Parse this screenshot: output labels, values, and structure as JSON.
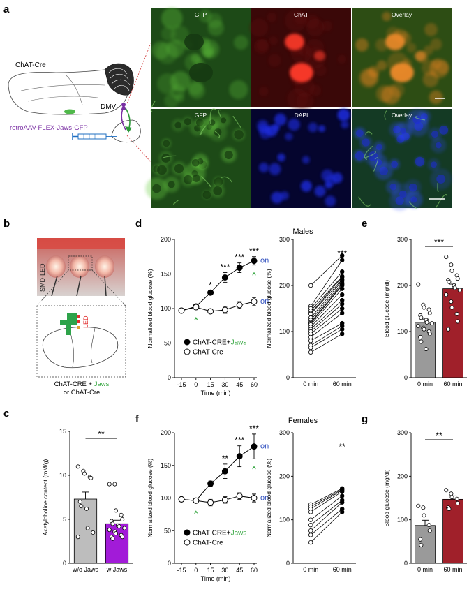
{
  "panels": {
    "a": "a",
    "b": "b",
    "c": "c",
    "d": "d",
    "e": "e",
    "f": "f",
    "g": "g"
  },
  "schematic_a": {
    "mouse_label": "ChAT-Cre",
    "nucleus_label": "DMV",
    "virus_label": "retroAAV-FLEX-Jaws-GFP"
  },
  "micrographs": [
    {
      "label": "GFP",
      "bg": "#1d4a17",
      "accent": "#5fbf3a"
    },
    {
      "label": "ChAT",
      "bg": "#3a0808",
      "accent": "#ff3020"
    },
    {
      "label": "Overlay",
      "bg": "#2d4d14",
      "accent": "#ff8a20"
    },
    {
      "label": "GFP",
      "bg": "#1d4a17",
      "accent": "#6ccf45"
    },
    {
      "label": "DAPI",
      "bg": "#05052e",
      "accent": "#2a3cff"
    },
    {
      "label": "Overlay",
      "bg": "#143a24",
      "accent": "#3050ff"
    }
  ],
  "panel_b": {
    "led_label": "SMD-LED",
    "led_text": "LED",
    "caption_line1_a": "ChAT-CRE + ",
    "caption_line1_b": "Jaws",
    "caption_line2": "or ChAT-Cre"
  },
  "sections": {
    "males": "Males",
    "females": "Females"
  },
  "colors": {
    "jaws_green": "#3aa845",
    "on_blue": "#2f4fbf",
    "male_red": "#a0202a",
    "gray_bar": "#bdbdbd",
    "purple_bar": "#a21bd8"
  },
  "chart_data": [
    {
      "panel": "c",
      "type": "bar",
      "categories": [
        "w/o Jaws",
        "w Jaws"
      ],
      "values": [
        7.3,
        4.5
      ],
      "errors": [
        0.8,
        0.4
      ],
      "points": [
        [
          11,
          10.5,
          10.2,
          9.8,
          9.7,
          7,
          6.5,
          6.2,
          4,
          3.5,
          3
        ],
        [
          9,
          9,
          6,
          5.5,
          5,
          4.8,
          4.5,
          4.3,
          4.2,
          4,
          3.8,
          3.6,
          3.4,
          3.2,
          3,
          3,
          2.8
        ]
      ],
      "ylabel": "Acetylcholine content (mM/g)",
      "yticks": [
        0,
        5,
        10,
        15
      ],
      "ylim": [
        0,
        15
      ],
      "significance": "**"
    },
    {
      "panel": "d",
      "type": "line",
      "x": [
        -15,
        0,
        15,
        30,
        45,
        60
      ],
      "xticks": [
        "-15",
        "0",
        "15",
        "30",
        "45",
        "60"
      ],
      "series": [
        {
          "name": "ChAT-CRE+Jaws",
          "values": [
            97,
            103,
            123,
            145,
            159,
            169
          ],
          "errors": [
            2,
            2,
            3,
            7,
            7,
            6
          ],
          "filled": true
        },
        {
          "name": "ChAT-Cre",
          "values": [
            97,
            102,
            96,
            98,
            105,
            110
          ],
          "errors": [
            2,
            2,
            3,
            5,
            5,
            6
          ],
          "filled": false
        }
      ],
      "significance": [
        "",
        "",
        "*",
        "***",
        "***",
        "***"
      ],
      "ylim": [
        0,
        200
      ],
      "yticks": [
        0,
        50,
        100,
        150,
        200
      ],
      "ylabel": "Normalized blood glucose (%)",
      "xlabel": "Time (min)",
      "on_label": "on",
      "legend": [
        {
          "name": "ChAT-CRE+",
          "name_b": "Jaws"
        },
        {
          "name": "ChAT-Cre"
        }
      ]
    },
    {
      "panel": "d2",
      "type": "line",
      "categories": [
        "0 min",
        "60 min"
      ],
      "pairs": [
        [
          200,
          265
        ],
        [
          155,
          255
        ],
        [
          150,
          230
        ],
        [
          145,
          220
        ],
        [
          140,
          218
        ],
        [
          138,
          213
        ],
        [
          130,
          210
        ],
        [
          125,
          205
        ],
        [
          120,
          202
        ],
        [
          118,
          200
        ],
        [
          115,
          193
        ],
        [
          110,
          180
        ],
        [
          105,
          168
        ],
        [
          100,
          160
        ],
        [
          95,
          150
        ],
        [
          88,
          140
        ],
        [
          80,
          118
        ],
        [
          70,
          112
        ],
        [
          65,
          105
        ],
        [
          55,
          95
        ]
      ],
      "ylim": [
        0,
        300
      ],
      "yticks": [
        0,
        100,
        200,
        300
      ],
      "ylabel": "Normalized blood glucose (%)",
      "significance": "***"
    },
    {
      "panel": "e",
      "type": "bar",
      "categories": [
        "0 min",
        "60 min"
      ],
      "values": [
        120,
        193
      ],
      "errors": [
        7,
        10
      ],
      "points": [
        [
          202,
          158,
          152,
          148,
          140,
          135,
          130,
          125,
          120,
          118,
          112,
          108,
          105,
          100,
          95,
          88,
          78,
          62
        ],
        [
          262,
          245,
          232,
          222,
          215,
          212,
          208,
          200,
          195,
          190,
          180,
          165,
          152,
          138,
          122,
          105
        ]
      ],
      "ylabel": "Blood glucose (mg/dl)",
      "ylim": [
        0,
        300
      ],
      "yticks": [
        0,
        100,
        200,
        300
      ],
      "significance": "***"
    },
    {
      "panel": "f",
      "type": "line",
      "x": [
        -15,
        0,
        15,
        30,
        45,
        60
      ],
      "xticks": [
        "-15",
        "0",
        "15",
        "30",
        "45",
        "60"
      ],
      "series": [
        {
          "name": "ChAT-CRE+Jaws",
          "values": [
            98,
            96,
            122,
            141,
            164,
            179
          ],
          "errors": [
            3,
            3,
            4,
            11,
            16,
            19
          ],
          "filled": true
        },
        {
          "name": "ChAT-Cre",
          "values": [
            98,
            96,
            93,
            97,
            103,
            100
          ],
          "errors": [
            3,
            3,
            5,
            5,
            5,
            6
          ],
          "filled": false
        }
      ],
      "significance": [
        "",
        "",
        "",
        "**",
        "***",
        "***"
      ],
      "ylim": [
        0,
        200
      ],
      "yticks": [
        0,
        50,
        100,
        150,
        200
      ],
      "ylabel": "Normalized blood glucose (%)",
      "xlabel": "Time (min)",
      "on_label": "on",
      "legend": [
        {
          "name": "ChAT-CRE+",
          "name_b": "Jaws"
        },
        {
          "name": "ChAT-Cre"
        }
      ]
    },
    {
      "panel": "f2",
      "type": "line",
      "categories": [
        "0 min",
        "60 min"
      ],
      "pairs": [
        [
          135,
          172
        ],
        [
          130,
          170
        ],
        [
          125,
          168
        ],
        [
          118,
          165
        ],
        [
          100,
          155
        ],
        [
          88,
          145
        ],
        [
          75,
          140
        ],
        [
          65,
          125
        ],
        [
          48,
          118
        ]
      ],
      "ylim": [
        0,
        300
      ],
      "yticks": [
        0,
        100,
        200,
        300
      ],
      "ylabel": "Normalized blood glucose (%)",
      "significance": "**"
    },
    {
      "panel": "g",
      "type": "bar",
      "categories": [
        "0 min",
        "60 min"
      ],
      "values": [
        87,
        147
      ],
      "errors": [
        12,
        8
      ],
      "points": [
        [
          132,
          128,
          110,
          88,
          75,
          55,
          42
        ],
        [
          168,
          160,
          152,
          148,
          138,
          128,
          125
        ]
      ],
      "ylabel": "Blood glucose (mg/dl)",
      "ylim": [
        0,
        300
      ],
      "yticks": [
        0,
        100,
        200,
        300
      ],
      "significance": "**"
    }
  ]
}
